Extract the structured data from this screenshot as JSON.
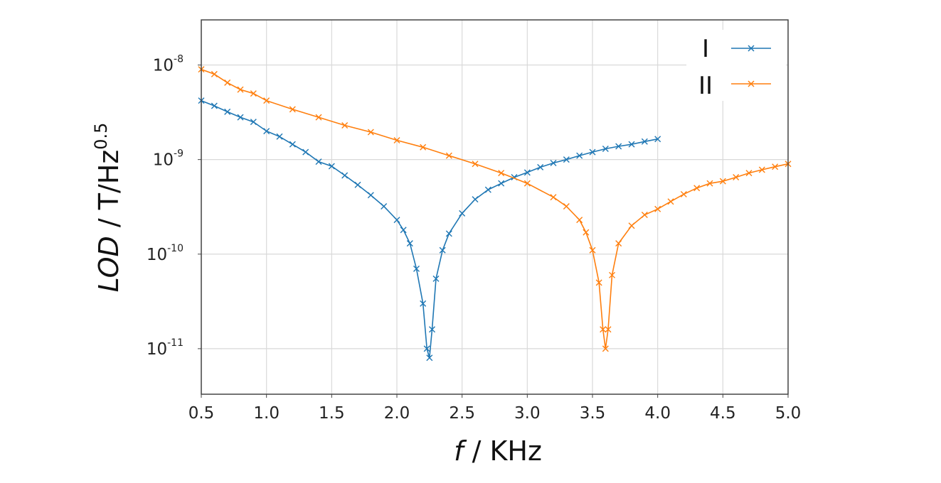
{
  "chart_data": {
    "type": "line",
    "x_axis": {
      "label_var": "f",
      "label_unit": " / KHz",
      "lim": [
        0.5,
        5.0
      ],
      "ticks": [
        0.5,
        1.0,
        1.5,
        2.0,
        2.5,
        3.0,
        3.5,
        4.0,
        4.5,
        5.0
      ],
      "tick_labels": [
        "0.5",
        "1.0",
        "1.5",
        "2.0",
        "2.5",
        "3.0",
        "3.5",
        "4.0",
        "4.5",
        "5.0"
      ]
    },
    "y_axis": {
      "label_var": "LOD",
      "label_unit_base": " / T/Hz",
      "label_unit_exp": "0.5",
      "scale": "log",
      "lim": [
        3.3e-12,
        3e-08
      ],
      "ticks": [
        1e-08,
        1e-09,
        1e-10,
        1e-11
      ],
      "tick_bases": [
        "10",
        "10",
        "10",
        "10"
      ],
      "tick_exps": [
        "-8",
        "-9",
        "-10",
        "-11"
      ]
    },
    "grid": true,
    "legend_position": "top-right",
    "series": [
      {
        "name": "I",
        "color": "#1f77b4",
        "marker": "x",
        "x": [
          0.5,
          0.6,
          0.7,
          0.8,
          0.9,
          1.0,
          1.1,
          1.2,
          1.3,
          1.4,
          1.5,
          1.6,
          1.7,
          1.8,
          1.9,
          2.0,
          2.05,
          2.1,
          2.15,
          2.2,
          2.23,
          2.25,
          2.27,
          2.3,
          2.35,
          2.4,
          2.5,
          2.6,
          2.7,
          2.8,
          2.9,
          3.0,
          3.1,
          3.2,
          3.3,
          3.4,
          3.5,
          3.6,
          3.7,
          3.8,
          3.9,
          4.0
        ],
        "y": [
          4.2e-09,
          3.7e-09,
          3.2e-09,
          2.8e-09,
          2.5e-09,
          2e-09,
          1.75e-09,
          1.45e-09,
          1.2e-09,
          9.5e-10,
          8.5e-10,
          6.8e-10,
          5.4e-10,
          4.2e-10,
          3.2e-10,
          2.3e-10,
          1.8e-10,
          1.3e-10,
          7e-11,
          3e-11,
          1e-11,
          8e-12,
          1.6e-11,
          5.5e-11,
          1.1e-10,
          1.65e-10,
          2.7e-10,
          3.8e-10,
          4.8e-10,
          5.6e-10,
          6.5e-10,
          7.3e-10,
          8.3e-10,
          9.2e-10,
          1e-09,
          1.1e-09,
          1.2e-09,
          1.3e-09,
          1.38e-09,
          1.45e-09,
          1.55e-09,
          1.65e-09
        ]
      },
      {
        "name": "II",
        "color": "#ff7f0e",
        "marker": "x",
        "x": [
          0.5,
          0.6,
          0.7,
          0.8,
          0.9,
          1.0,
          1.2,
          1.4,
          1.6,
          1.8,
          2.0,
          2.2,
          2.4,
          2.6,
          2.8,
          3.0,
          3.2,
          3.3,
          3.4,
          3.45,
          3.5,
          3.55,
          3.58,
          3.6,
          3.62,
          3.65,
          3.7,
          3.8,
          3.9,
          4.0,
          4.1,
          4.2,
          4.3,
          4.4,
          4.5,
          4.6,
          4.7,
          4.8,
          4.9,
          5.0
        ],
        "y": [
          9e-09,
          8e-09,
          6.5e-09,
          5.5e-09,
          5e-09,
          4.2e-09,
          3.4e-09,
          2.8e-09,
          2.3e-09,
          1.95e-09,
          1.6e-09,
          1.35e-09,
          1.1e-09,
          9e-10,
          7.2e-10,
          5.6e-10,
          4e-10,
          3.2e-10,
          2.3e-10,
          1.7e-10,
          1.1e-10,
          5e-11,
          1.6e-11,
          1e-11,
          1.6e-11,
          6e-11,
          1.3e-10,
          2e-10,
          2.6e-10,
          3e-10,
          3.6e-10,
          4.3e-10,
          5e-10,
          5.6e-10,
          5.9e-10,
          6.5e-10,
          7.2e-10,
          7.8e-10,
          8.4e-10,
          9e-10
        ]
      }
    ]
  }
}
